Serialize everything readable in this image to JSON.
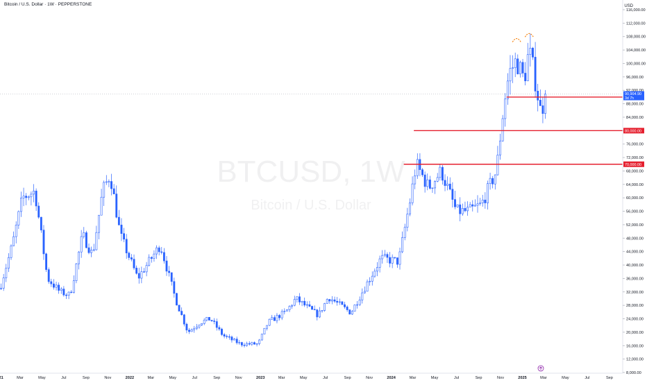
{
  "header": {
    "title": "Bitcoin / U.S. Dollar · 1W · PEPPERSTONE",
    "currency": "USD"
  },
  "watermark": {
    "symbol": "BTCUSD, 1W",
    "description": "Bitcoin / U.S. Dollar"
  },
  "colors": {
    "up": "#2962ff",
    "down": "#2962ff",
    "line_red": "#e5202f",
    "label_blue": "#2962ff",
    "arc_orange": "#f57c00"
  },
  "price_label": {
    "value": "90,904.90",
    "countdown": "3d 7h"
  },
  "chart_data": {
    "type": "candlestick",
    "y_axis": {
      "min": 8000,
      "max": 116000,
      "ticks": [
        8000,
        12000,
        16000,
        20000,
        24000,
        28000,
        32000,
        36000,
        40000,
        44000,
        48000,
        52000,
        56000,
        60000,
        64000,
        68000,
        72000,
        76000,
        80000,
        84000,
        88000,
        92000,
        96000,
        100000,
        104000,
        108000,
        112000,
        116000
      ],
      "tick_labels": [
        "8,000.00",
        "12,000.00",
        "16,000.00",
        "20,000.00",
        "24,000.00",
        "28,000.00",
        "32,000.00",
        "36,000.00",
        "40,000.00",
        "44,000.00",
        "48,000.00",
        "52,000.00",
        "56,000.00",
        "60,000.00",
        "64,000.00",
        "68,000.00",
        "72,000.00",
        "76,000.00",
        "80,000.00",
        "84,000.00",
        "88,000.00",
        "92,000.00",
        "96,000.00",
        "100,000.00",
        "104,000.00",
        "108,000.00",
        "112,000.00",
        "116,000.00"
      ]
    },
    "x_axis": {
      "start": "2021-01-04",
      "end": "2025-10-06",
      "ticks": [
        {
          "date": "2021-01-01",
          "label": "2021"
        },
        {
          "date": "2021-03-01",
          "label": "Mar"
        },
        {
          "date": "2021-05-01",
          "label": "May"
        },
        {
          "date": "2021-07-01",
          "label": "Jul"
        },
        {
          "date": "2021-09-01",
          "label": "Sep"
        },
        {
          "date": "2021-11-01",
          "label": "Nov"
        },
        {
          "date": "2022-01-01",
          "label": "2022"
        },
        {
          "date": "2022-03-01",
          "label": "Mar"
        },
        {
          "date": "2022-05-01",
          "label": "May"
        },
        {
          "date": "2022-07-01",
          "label": "Jul"
        },
        {
          "date": "2022-09-01",
          "label": "Sep"
        },
        {
          "date": "2022-11-01",
          "label": "Nov"
        },
        {
          "date": "2023-01-01",
          "label": "2023"
        },
        {
          "date": "2023-03-01",
          "label": "Mar"
        },
        {
          "date": "2023-05-01",
          "label": "May"
        },
        {
          "date": "2023-07-01",
          "label": "Jul"
        },
        {
          "date": "2023-09-01",
          "label": "Sep"
        },
        {
          "date": "2023-11-01",
          "label": "Nov"
        },
        {
          "date": "2024-01-01",
          "label": "2024"
        },
        {
          "date": "2024-03-01",
          "label": "Mar"
        },
        {
          "date": "2024-05-01",
          "label": "May"
        },
        {
          "date": "2024-07-01",
          "label": "Jul"
        },
        {
          "date": "2024-09-01",
          "label": "Sep"
        },
        {
          "date": "2024-11-01",
          "label": "Nov"
        },
        {
          "date": "2025-01-01",
          "label": "2025"
        },
        {
          "date": "2025-03-01",
          "label": "Mar"
        },
        {
          "date": "2025-05-01",
          "label": "May"
        },
        {
          "date": "2025-07-01",
          "label": "Jul"
        },
        {
          "date": "2025-09-01",
          "label": "Sep"
        }
      ]
    },
    "current_price": 90904.9,
    "horizontal_lines": [
      {
        "price": 90000,
        "label": "90,000.00",
        "from_date": "2024-11-18"
      },
      {
        "price": 80000,
        "label": "80,000.00",
        "from_date": "2024-03-04"
      },
      {
        "price": 70000,
        "label": "70,000.00",
        "from_date": "2024-02-05"
      }
    ],
    "annotations": [
      {
        "type": "arc",
        "date": "2024-12-16",
        "price": 107000
      },
      {
        "type": "arc",
        "date": "2025-01-20",
        "price": 108500
      }
    ],
    "anchor_points": [
      [
        "2021-01-04",
        33000
      ],
      [
        "2021-02-08",
        46000
      ],
      [
        "2021-03-08",
        60000
      ],
      [
        "2021-04-12",
        62000
      ],
      [
        "2021-05-17",
        36000
      ],
      [
        "2021-06-21",
        32000
      ],
      [
        "2021-07-19",
        31000
      ],
      [
        "2021-08-23",
        49000
      ],
      [
        "2021-09-20",
        43000
      ],
      [
        "2021-10-18",
        62000
      ],
      [
        "2021-11-08",
        67000
      ],
      [
        "2021-12-06",
        49000
      ],
      [
        "2022-01-24",
        36000
      ],
      [
        "2022-03-28",
        46000
      ],
      [
        "2022-05-09",
        30000
      ],
      [
        "2022-06-13",
        20000
      ],
      [
        "2022-07-18",
        23000
      ],
      [
        "2022-08-15",
        24000
      ],
      [
        "2022-09-19",
        19000
      ],
      [
        "2022-11-07",
        16500
      ],
      [
        "2022-12-26",
        16500
      ],
      [
        "2023-01-23",
        23000
      ],
      [
        "2023-03-13",
        26000
      ],
      [
        "2023-04-10",
        30000
      ],
      [
        "2023-06-12",
        25000
      ],
      [
        "2023-07-10",
        30500
      ],
      [
        "2023-09-11",
        25800
      ],
      [
        "2023-10-23",
        34000
      ],
      [
        "2023-12-04",
        42000
      ],
      [
        "2024-01-22",
        41000
      ],
      [
        "2024-02-26",
        61000
      ],
      [
        "2024-03-11",
        70000
      ],
      [
        "2024-04-15",
        63000
      ],
      [
        "2024-05-20",
        68000
      ],
      [
        "2024-07-01",
        56000
      ],
      [
        "2024-08-05",
        56000
      ],
      [
        "2024-09-09",
        58000
      ],
      [
        "2024-10-21",
        68000
      ],
      [
        "2024-11-11",
        88000
      ],
      [
        "2024-11-25",
        97000
      ],
      [
        "2024-12-16",
        101000
      ],
      [
        "2025-01-06",
        95000
      ],
      [
        "2025-01-20",
        104000
      ],
      [
        "2025-02-03",
        97000
      ],
      [
        "2025-02-24",
        84000
      ],
      [
        "2025-03-03",
        90900
      ]
    ]
  }
}
